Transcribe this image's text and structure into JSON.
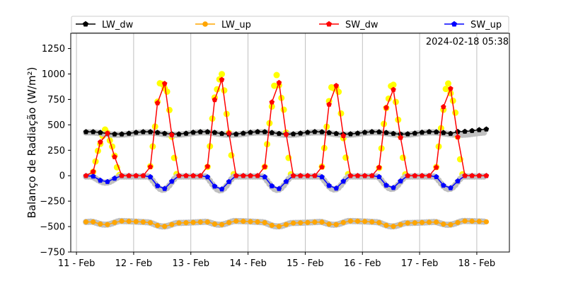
{
  "chart_data": {
    "type": "line",
    "ylabel": "Balanço de Radiação (W/m²)",
    "xlabel": "",
    "annotation": "2024-02-18 05:38",
    "x_tick_labels": [
      "11 - Feb",
      "12 - Feb",
      "13 - Feb",
      "14 - Feb",
      "15 - Feb",
      "16 - Feb",
      "17 - Feb",
      "18 - Feb"
    ],
    "y_ticks": [
      -750,
      -500,
      -250,
      0,
      250,
      500,
      750,
      1000,
      1250
    ],
    "ylim": [
      -750,
      1400
    ],
    "xlim_days": [
      10.9,
      18.57
    ],
    "grid": "vertical",
    "legend_position": "top",
    "series": [
      {
        "name": "LW_dw",
        "color": "#000000",
        "marker": "pentagon",
        "x": [],
        "y": []
      },
      {
        "name": "LW_up",
        "color": "#ffa500",
        "marker": "circle",
        "x": [],
        "y": []
      },
      {
        "name": "SW_dw",
        "color": "#ff0000",
        "marker": "pentagon",
        "x": [],
        "y": []
      },
      {
        "name": "SW_up",
        "color": "#0000ff",
        "marker": "pentagon",
        "x": [],
        "y": []
      }
    ],
    "background_series": [
      {
        "color": "#ffff00",
        "description_key": "SW_dw raw"
      },
      {
        "color": "#c0c0c0",
        "description_key": "LW/SW_up raw"
      }
    ],
    "generation": {
      "days": [
        "11",
        "12",
        "13",
        "14",
        "15",
        "16",
        "17",
        "18"
      ],
      "sw_peaks": [
        430,
        930,
        970,
        940,
        910,
        870,
        880
      ],
      "start": "2024-02-11 04:00",
      "end": "2024-02-18 05:38",
      "step_hours": 3
    }
  }
}
